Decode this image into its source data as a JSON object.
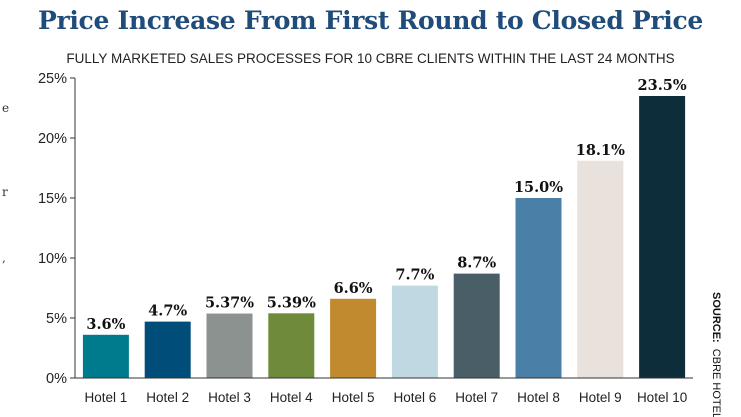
{
  "chart_data": {
    "type": "bar",
    "title": "Price Increase From First Round to Closed Price",
    "subtitle": "FULLY MARKETED SALES PROCESSES FOR 10 CBRE CLIENTS WITHIN THE LAST 24 MONTHS",
    "xlabel": "",
    "ylabel": "",
    "categories": [
      "Hotel 1",
      "Hotel 2",
      "Hotel 3",
      "Hotel 4",
      "Hotel 5",
      "Hotel 6",
      "Hotel 7",
      "Hotel 8",
      "Hotel 9",
      "Hotel 10"
    ],
    "values": [
      3.6,
      4.7,
      5.37,
      5.39,
      6.6,
      7.7,
      8.7,
      15.0,
      18.1,
      23.5
    ],
    "data_labels": [
      "3.6%",
      "4.7%",
      "5.37%",
      "5.39%",
      "6.6%",
      "7.7%",
      "8.7%",
      "15.0%",
      "18.1%",
      "23.5%"
    ],
    "colors": [
      "#007b8e",
      "#004d7a",
      "#8c9290",
      "#6f8a3a",
      "#c28a2e",
      "#c0d8e2",
      "#4a5e68",
      "#4a7fa8",
      "#e8e1dc",
      "#0e2d3a"
    ],
    "ylim": [
      0,
      25
    ],
    "yticks": [
      0,
      5,
      10,
      15,
      20,
      25
    ],
    "ytick_labels": [
      "0%",
      "5%",
      "10%",
      "15%",
      "20%",
      "25%"
    ],
    "grid": false,
    "legend": "none",
    "source_prefix": "SOURCE:",
    "source": "CBRE HOTELS"
  }
}
